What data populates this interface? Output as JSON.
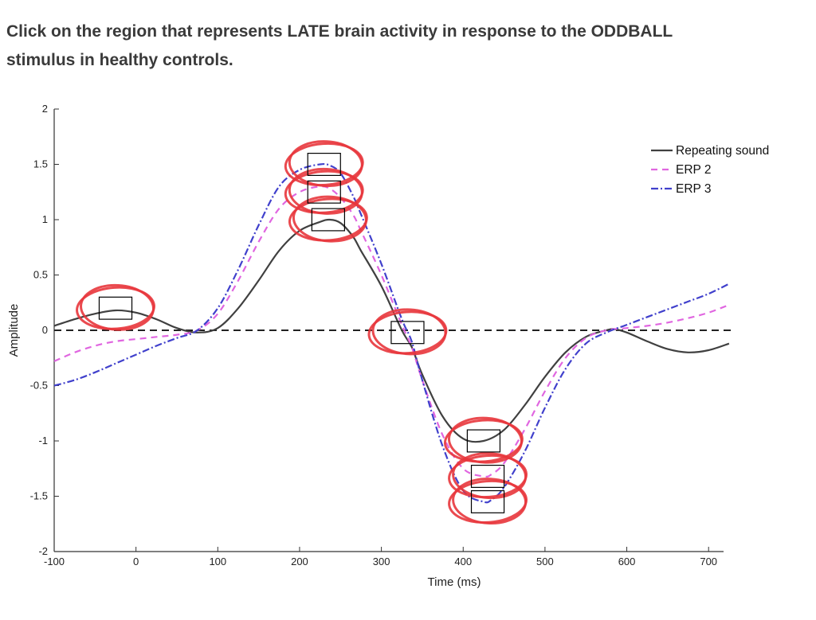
{
  "question": {
    "line1": "Click on the region that represents LATE brain activity in response to the ODDBALL",
    "line2": "stimulus in healthy controls."
  },
  "colors": {
    "repeating": "#404040",
    "erp2": "#e066e0",
    "erp3": "#4040cc",
    "annotation": "#e8363c",
    "text": "#3a3a3a"
  },
  "chart_data": {
    "type": "line",
    "title": "",
    "xlabel": "Time (ms)",
    "ylabel": "Amplitude",
    "xlim": [
      -100,
      730
    ],
    "ylim": [
      -2,
      2
    ],
    "xticks": [
      -100,
      0,
      100,
      200,
      300,
      400,
      500,
      600,
      700
    ],
    "yticks": [
      -2,
      -1.5,
      -1,
      -0.5,
      0,
      0.5,
      1,
      1.5,
      2
    ],
    "ytick_labels": [
      "-2",
      "-1.5",
      "-1",
      "-0.5",
      "0",
      "0.5",
      "1",
      "1.5",
      "2"
    ],
    "legend_position": "top-right",
    "baseline": 0,
    "series": [
      {
        "name": "Repeating sound",
        "key": "repeating",
        "style": "solid",
        "x": [
          -100,
          -75,
          -50,
          -25,
          0,
          25,
          50,
          75,
          100,
          125,
          150,
          175,
          200,
          225,
          237,
          250,
          265,
          275,
          300,
          325,
          337,
          350,
          375,
          400,
          425,
          450,
          475,
          500,
          525,
          550,
          575,
          585,
          600,
          625,
          650,
          675,
          700,
          725
        ],
        "y": [
          0.04,
          0.1,
          0.15,
          0.18,
          0.16,
          0.1,
          0.02,
          -0.02,
          0.02,
          0.2,
          0.45,
          0.72,
          0.9,
          0.98,
          1.0,
          0.97,
          0.85,
          0.72,
          0.4,
          0.0,
          -0.15,
          -0.4,
          -0.78,
          -0.98,
          -1.0,
          -0.9,
          -0.68,
          -0.42,
          -0.2,
          -0.06,
          0.0,
          0.01,
          -0.02,
          -0.1,
          -0.17,
          -0.2,
          -0.18,
          -0.12
        ]
      },
      {
        "name": "ERP 2",
        "key": "erp2",
        "style": "dashed",
        "x": [
          -100,
          -75,
          -50,
          -25,
          0,
          25,
          50,
          75,
          100,
          125,
          150,
          175,
          200,
          225,
          237,
          250,
          265,
          275,
          300,
          325,
          337,
          350,
          375,
          400,
          425,
          435,
          450,
          475,
          500,
          525,
          550,
          575,
          600,
          625,
          650,
          675,
          700,
          725
        ],
        "y": [
          -0.28,
          -0.2,
          -0.14,
          -0.1,
          -0.08,
          -0.06,
          -0.04,
          0.0,
          0.15,
          0.45,
          0.8,
          1.1,
          1.25,
          1.3,
          1.28,
          1.2,
          1.05,
          0.9,
          0.5,
          0.05,
          -0.15,
          -0.45,
          -0.95,
          -1.25,
          -1.32,
          -1.3,
          -1.2,
          -0.9,
          -0.55,
          -0.25,
          -0.07,
          0.0,
          0.02,
          0.04,
          0.07,
          0.11,
          0.16,
          0.23
        ]
      },
      {
        "name": "ERP 3",
        "key": "erp3",
        "style": "dashdot",
        "x": [
          -100,
          -75,
          -50,
          -25,
          0,
          25,
          50,
          75,
          100,
          125,
          150,
          175,
          200,
          225,
          237,
          250,
          265,
          275,
          300,
          325,
          337,
          350,
          375,
          400,
          425,
          435,
          450,
          475,
          500,
          525,
          550,
          575,
          600,
          625,
          650,
          675,
          700,
          725
        ],
        "y": [
          -0.5,
          -0.45,
          -0.38,
          -0.3,
          -0.22,
          -0.14,
          -0.07,
          0.0,
          0.2,
          0.55,
          0.95,
          1.3,
          1.45,
          1.5,
          1.49,
          1.42,
          1.22,
          1.05,
          0.6,
          0.1,
          -0.1,
          -0.45,
          -1.05,
          -1.45,
          -1.55,
          -1.53,
          -1.42,
          -1.1,
          -0.7,
          -0.35,
          -0.12,
          -0.02,
          0.05,
          0.12,
          0.19,
          0.26,
          0.33,
          0.42
        ]
      }
    ],
    "regions": [
      {
        "id": "early-baseline-peak",
        "x0": -45,
        "x1": -5,
        "y0": 0.1,
        "y1": 0.3
      },
      {
        "id": "erp3-positive-peak",
        "x0": 210,
        "x1": 250,
        "y0": 1.4,
        "y1": 1.6
      },
      {
        "id": "erp2-positive-peak",
        "x0": 210,
        "x1": 250,
        "y0": 1.15,
        "y1": 1.35
      },
      {
        "id": "repeating-positive-peak",
        "x0": 215,
        "x1": 255,
        "y0": 0.9,
        "y1": 1.1
      },
      {
        "id": "zero-crossing",
        "x0": 312,
        "x1": 352,
        "y0": -0.12,
        "y1": 0.08
      },
      {
        "id": "repeating-negative-peak",
        "x0": 405,
        "x1": 445,
        "y0": -1.1,
        "y1": -0.9
      },
      {
        "id": "erp2-negative-peak",
        "x0": 410,
        "x1": 450,
        "y0": -1.42,
        "y1": -1.22
      },
      {
        "id": "erp3-negative-peak",
        "x0": 410,
        "x1": 450,
        "y0": -1.65,
        "y1": -1.45
      }
    ]
  }
}
